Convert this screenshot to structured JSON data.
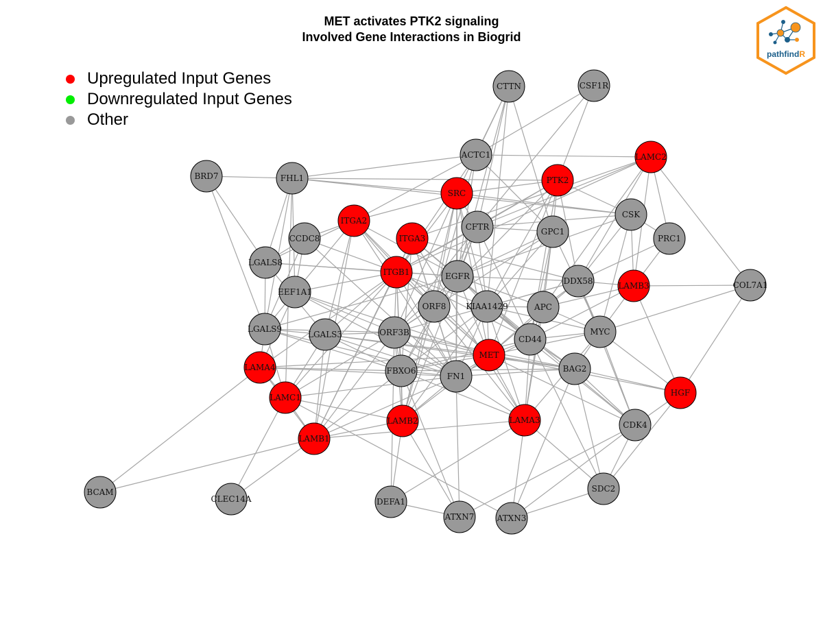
{
  "title": {
    "line1": "MET activates PTK2 signaling",
    "line2": "Involved Gene Interactions in Biogrid"
  },
  "legend": [
    {
      "label": "Upregulated Input Genes",
      "color": "#ff0000"
    },
    {
      "label": "Downregulated Input Genes",
      "color": "#00ee00"
    },
    {
      "label": "Other",
      "color": "#999999"
    }
  ],
  "logo": {
    "text_part1": "pathfind",
    "text_part2": "R",
    "border_color": "#f7941d",
    "text_color": "#1c5f8a"
  },
  "colors": {
    "upregulated": "#ff0000",
    "other": "#999999",
    "edge": "#a6a6a6"
  },
  "nodes": [
    {
      "id": "CTTN",
      "status": "other"
    },
    {
      "id": "CSF1R",
      "status": "other"
    },
    {
      "id": "ACTC1",
      "status": "other"
    },
    {
      "id": "LAMC2",
      "status": "up"
    },
    {
      "id": "BRD7",
      "status": "other"
    },
    {
      "id": "FHL1",
      "status": "other"
    },
    {
      "id": "PTK2",
      "status": "up"
    },
    {
      "id": "SRC",
      "status": "up"
    },
    {
      "id": "CSK",
      "status": "other"
    },
    {
      "id": "ITGA2",
      "status": "up"
    },
    {
      "id": "CFTR",
      "status": "other"
    },
    {
      "id": "GPC1",
      "status": "other"
    },
    {
      "id": "PRC1",
      "status": "other"
    },
    {
      "id": "CCDC8",
      "status": "other"
    },
    {
      "id": "ITGA3",
      "status": "up"
    },
    {
      "id": "LGALS8",
      "status": "other"
    },
    {
      "id": "ITGB1",
      "status": "up"
    },
    {
      "id": "EGFR",
      "status": "other"
    },
    {
      "id": "DDX58",
      "status": "other"
    },
    {
      "id": "LAMB3",
      "status": "up"
    },
    {
      "id": "COL7A1",
      "status": "other"
    },
    {
      "id": "EEF1A1",
      "status": "other"
    },
    {
      "id": "ORF8",
      "status": "other"
    },
    {
      "id": "KIAA1429",
      "status": "other"
    },
    {
      "id": "APC",
      "status": "other"
    },
    {
      "id": "LGALS9",
      "status": "other"
    },
    {
      "id": "LGALS3",
      "status": "other"
    },
    {
      "id": "ORF3B",
      "status": "other"
    },
    {
      "id": "MYC",
      "status": "other"
    },
    {
      "id": "CD44",
      "status": "other"
    },
    {
      "id": "MET",
      "status": "up"
    },
    {
      "id": "LAMA4",
      "status": "up"
    },
    {
      "id": "FBXO6",
      "status": "other"
    },
    {
      "id": "FN1",
      "status": "other"
    },
    {
      "id": "BAG2",
      "status": "other"
    },
    {
      "id": "HGF",
      "status": "up"
    },
    {
      "id": "LAMC1",
      "status": "up"
    },
    {
      "id": "LAMB2",
      "status": "up"
    },
    {
      "id": "LAMA3",
      "status": "up"
    },
    {
      "id": "CDK4",
      "status": "other"
    },
    {
      "id": "LAMB1",
      "status": "up"
    },
    {
      "id": "BCAM",
      "status": "other"
    },
    {
      "id": "CLEC14A",
      "status": "other"
    },
    {
      "id": "DEFA1",
      "status": "other"
    },
    {
      "id": "SDC2",
      "status": "other"
    },
    {
      "id": "ATXN7",
      "status": "other"
    },
    {
      "id": "ATXN3",
      "status": "other"
    }
  ],
  "edges": [
    [
      "CTTN",
      "ACTC1"
    ],
    [
      "CTTN",
      "SRC"
    ],
    [
      "CTTN",
      "CFTR"
    ],
    [
      "CTTN",
      "GPC1"
    ],
    [
      "CTTN",
      "EGFR"
    ],
    [
      "CTTN",
      "KIAA1429"
    ],
    [
      "CSF1R",
      "PTK2"
    ],
    [
      "CSF1R",
      "ACTC1"
    ],
    [
      "CSF1R",
      "CFTR"
    ],
    [
      "ACTC1",
      "LAMC2"
    ],
    [
      "ACTC1",
      "FHL1"
    ],
    [
      "ACTC1",
      "ITGA2"
    ],
    [
      "ACTC1",
      "EGFR"
    ],
    [
      "ACTC1",
      "ORF8"
    ],
    [
      "ACTC1",
      "GPC1"
    ],
    [
      "ACTC1",
      "ITGB1"
    ],
    [
      "LAMC2",
      "ITGA3"
    ],
    [
      "LAMC2",
      "COL7A1"
    ],
    [
      "LAMC2",
      "PRC1"
    ],
    [
      "LAMC2",
      "ITGB1"
    ],
    [
      "LAMC2",
      "APC"
    ],
    [
      "LAMC2",
      "DDX58"
    ],
    [
      "LAMC2",
      "CFTR"
    ],
    [
      "LAMC2",
      "LAMB3"
    ],
    [
      "BRD7",
      "FHL1"
    ],
    [
      "BRD7",
      "LGALS8"
    ],
    [
      "BRD7",
      "LGALS9"
    ],
    [
      "FHL1",
      "SRC"
    ],
    [
      "FHL1",
      "PTK2"
    ],
    [
      "FHL1",
      "LGALS8"
    ],
    [
      "FHL1",
      "LGALS9"
    ],
    [
      "FHL1",
      "CSK"
    ],
    [
      "FHL1",
      "EEF1A1"
    ],
    [
      "FHL1",
      "LAMC1"
    ],
    [
      "PTK2",
      "SRC"
    ],
    [
      "PTK2",
      "CSK"
    ],
    [
      "PTK2",
      "ITGB1"
    ],
    [
      "PTK2",
      "MET"
    ],
    [
      "PTK2",
      "CFTR"
    ],
    [
      "PTK2",
      "GPC1"
    ],
    [
      "PTK2",
      "DDX58"
    ],
    [
      "PTK2",
      "KIAA1429"
    ],
    [
      "PTK2",
      "ORF8"
    ],
    [
      "PTK2",
      "CD44"
    ],
    [
      "SRC",
      "CSK"
    ],
    [
      "SRC",
      "ITGB1"
    ],
    [
      "SRC",
      "EGFR"
    ],
    [
      "SRC",
      "MET"
    ],
    [
      "SRC",
      "ORF3B"
    ],
    [
      "SRC",
      "KIAA1429"
    ],
    [
      "SRC",
      "LAMB2"
    ],
    [
      "SRC",
      "FN1"
    ],
    [
      "SRC",
      "ITGA2"
    ],
    [
      "SRC",
      "CFTR"
    ],
    [
      "SRC",
      "ORF8"
    ],
    [
      "CSK",
      "EGFR"
    ],
    [
      "CSK",
      "CFTR"
    ],
    [
      "CSK",
      "PRC1"
    ],
    [
      "CSK",
      "LAMB3"
    ],
    [
      "CSK",
      "MYC"
    ],
    [
      "CSK",
      "DDX58"
    ],
    [
      "ITGA2",
      "LGALS8"
    ],
    [
      "ITGA2",
      "CCDC8"
    ],
    [
      "ITGA2",
      "ITGB1"
    ],
    [
      "ITGA2",
      "EGFR"
    ],
    [
      "ITGA2",
      "FN1"
    ],
    [
      "ITGA2",
      "LAMB1"
    ],
    [
      "ITGA2",
      "LGALS3"
    ],
    [
      "ITGA2",
      "EEF1A1"
    ],
    [
      "ITGA2",
      "ORF8"
    ],
    [
      "ITGA2",
      "MET"
    ],
    [
      "CFTR",
      "EGFR"
    ],
    [
      "CFTR",
      "ORF3B"
    ],
    [
      "CFTR",
      "KIAA1429"
    ],
    [
      "CFTR",
      "LAMB2"
    ],
    [
      "CFTR",
      "ITGB1"
    ],
    [
      "CFTR",
      "FBXO6"
    ],
    [
      "CFTR",
      "GPC1"
    ],
    [
      "CFTR",
      "CD44"
    ],
    [
      "GPC1",
      "EGFR"
    ],
    [
      "GPC1",
      "APC"
    ],
    [
      "GPC1",
      "CD44"
    ],
    [
      "GPC1",
      "MYC"
    ],
    [
      "GPC1",
      "LAMA3"
    ],
    [
      "GPC1",
      "ORF3B"
    ],
    [
      "GPC1",
      "KIAA1429"
    ],
    [
      "PRC1",
      "LAMB3"
    ],
    [
      "PRC1",
      "DDX58"
    ],
    [
      "CCDC8",
      "LGALS8"
    ],
    [
      "CCDC8",
      "LGALS9"
    ],
    [
      "CCDC8",
      "ITGB1"
    ],
    [
      "CCDC8",
      "FN1"
    ],
    [
      "CCDC8",
      "EEF1A1"
    ],
    [
      "ITGA3",
      "ITGB1"
    ],
    [
      "ITGA3",
      "EGFR"
    ],
    [
      "ITGA3",
      "LAMB1"
    ],
    [
      "ITGA3",
      "FN1"
    ],
    [
      "ITGA3",
      "LAMA3"
    ],
    [
      "ITGA3",
      "ORF8"
    ],
    [
      "ITGA3",
      "CD44"
    ],
    [
      "ITGA3",
      "FBXO6"
    ],
    [
      "ITGA3",
      "DDX58"
    ],
    [
      "LGALS8",
      "ITGB1"
    ],
    [
      "LGALS8",
      "LGALS9"
    ],
    [
      "LGALS8",
      "EGFR"
    ],
    [
      "LGALS8",
      "LGALS3"
    ],
    [
      "ITGB1",
      "EGFR"
    ],
    [
      "ITGB1",
      "ORF8"
    ],
    [
      "ITGB1",
      "FN1"
    ],
    [
      "ITGB1",
      "LAMB2"
    ],
    [
      "ITGB1",
      "MET"
    ],
    [
      "ITGB1",
      "ORF3B"
    ],
    [
      "ITGB1",
      "LAMC1"
    ],
    [
      "ITGB1",
      "LGALS3"
    ],
    [
      "ITGB1",
      "FBXO6"
    ],
    [
      "ITGB1",
      "KIAA1429"
    ],
    [
      "ITGB1",
      "LAMB1"
    ],
    [
      "ITGB1",
      "LAMA4"
    ],
    [
      "ITGB1",
      "CD44"
    ],
    [
      "ITGB1",
      "EEF1A1"
    ],
    [
      "EGFR",
      "KIAA1429"
    ],
    [
      "EGFR",
      "MET"
    ],
    [
      "EGFR",
      "ORF3B"
    ],
    [
      "EGFR",
      "FN1"
    ],
    [
      "EGFR",
      "CD44"
    ],
    [
      "EGFR",
      "APC"
    ],
    [
      "EGFR",
      "DDX58"
    ],
    [
      "EGFR",
      "LGALS9"
    ],
    [
      "EGFR",
      "CDK4"
    ],
    [
      "EGFR",
      "FBXO6"
    ],
    [
      "DDX58",
      "LAMB3"
    ],
    [
      "DDX58",
      "APC"
    ],
    [
      "DDX58",
      "MYC"
    ],
    [
      "DDX58",
      "KIAA1429"
    ],
    [
      "DDX58",
      "CDK4"
    ],
    [
      "DDX58",
      "MET"
    ],
    [
      "DDX58",
      "ORF3B"
    ],
    [
      "LAMB3",
      "COL7A1"
    ],
    [
      "LAMB3",
      "HGF"
    ],
    [
      "LAMB3",
      "MYC"
    ],
    [
      "LAMB3",
      "APC"
    ],
    [
      "LAMB3",
      "CD44"
    ],
    [
      "COL7A1",
      "HGF"
    ],
    [
      "COL7A1",
      "MYC"
    ],
    [
      "EEF1A1",
      "LGALS9"
    ],
    [
      "EEF1A1",
      "FN1"
    ],
    [
      "EEF1A1",
      "ORF3B"
    ],
    [
      "EEF1A1",
      "MET"
    ],
    [
      "EEF1A1",
      "LAMA4"
    ],
    [
      "ORF8",
      "FN1"
    ],
    [
      "ORF8",
      "LAMB2"
    ],
    [
      "ORF8",
      "ORF3B"
    ],
    [
      "ORF8",
      "MET"
    ],
    [
      "ORF8",
      "LAMA3"
    ],
    [
      "KIAA1429",
      "MET"
    ],
    [
      "KIAA1429",
      "CD44"
    ],
    [
      "KIAA1429",
      "APC"
    ],
    [
      "KIAA1429",
      "MYC"
    ],
    [
      "KIAA1429",
      "BAG2"
    ],
    [
      "KIAA1429",
      "FN1"
    ],
    [
      "KIAA1429",
      "FBXO6"
    ],
    [
      "KIAA1429",
      "LAMB2"
    ],
    [
      "KIAA1429",
      "LAMA3"
    ],
    [
      "KIAA1429",
      "CDK4"
    ],
    [
      "APC",
      "MYC"
    ],
    [
      "APC",
      "MET"
    ],
    [
      "APC",
      "CD44"
    ],
    [
      "APC",
      "LAMA3"
    ],
    [
      "LGALS9",
      "LGALS3"
    ],
    [
      "LGALS9",
      "ORF3B"
    ],
    [
      "LGALS9",
      "LAMA4"
    ],
    [
      "LGALS9",
      "LAMC1"
    ],
    [
      "LGALS9",
      "FN1"
    ],
    [
      "LGALS9",
      "FBXO6"
    ],
    [
      "LGALS3",
      "ORF3B"
    ],
    [
      "LGALS3",
      "FN1"
    ],
    [
      "LGALS3",
      "MET"
    ],
    [
      "LGALS3",
      "LAMC1"
    ],
    [
      "LGALS3",
      "FBXO6"
    ],
    [
      "LGALS3",
      "LAMB1"
    ],
    [
      "LGALS3",
      "BAG2"
    ],
    [
      "ORF3B",
      "FN1"
    ],
    [
      "ORF3B",
      "FBXO6"
    ],
    [
      "ORF3B",
      "LAMB2"
    ],
    [
      "ORF3B",
      "MET"
    ],
    [
      "ORF3B",
      "LAMB1"
    ],
    [
      "ORF3B",
      "BAG2"
    ],
    [
      "ORF3B",
      "DEFA1"
    ],
    [
      "ORF3B",
      "LAMC1"
    ],
    [
      "MYC",
      "CD44"
    ],
    [
      "MYC",
      "BAG2"
    ],
    [
      "MYC",
      "HGF"
    ],
    [
      "MYC",
      "CDK4"
    ],
    [
      "MYC",
      "MET"
    ],
    [
      "MYC",
      "LAMA3"
    ],
    [
      "CD44",
      "MET"
    ],
    [
      "CD44",
      "FN1"
    ],
    [
      "CD44",
      "LAMA3"
    ],
    [
      "CD44",
      "BAG2"
    ],
    [
      "CD44",
      "SDC2"
    ],
    [
      "CD44",
      "FBXO6"
    ],
    [
      "MET",
      "FN1"
    ],
    [
      "MET",
      "HGF"
    ],
    [
      "MET",
      "BAG2"
    ],
    [
      "MET",
      "LAMA3"
    ],
    [
      "MET",
      "FBXO6"
    ],
    [
      "MET",
      "LAMB2"
    ],
    [
      "MET",
      "CDK4"
    ],
    [
      "MET",
      "LAMA4"
    ],
    [
      "LAMA4",
      "LAMC1"
    ],
    [
      "LAMA4",
      "LAMB1"
    ],
    [
      "LAMA4",
      "FN1"
    ],
    [
      "LAMA4",
      "BCAM"
    ],
    [
      "LAMA4",
      "FBXO6"
    ],
    [
      "FBXO6",
      "FN1"
    ],
    [
      "FBXO6",
      "LAMB2"
    ],
    [
      "FBXO6",
      "LAMB1"
    ],
    [
      "FBXO6",
      "BAG2"
    ],
    [
      "FBXO6",
      "ATXN7"
    ],
    [
      "FBXO6",
      "LAMA3"
    ],
    [
      "FN1",
      "BAG2"
    ],
    [
      "FN1",
      "LAMA3"
    ],
    [
      "FN1",
      "LAMB1"
    ],
    [
      "FN1",
      "ATXN7"
    ],
    [
      "FN1",
      "LAMC1"
    ],
    [
      "FN1",
      "LAMB2"
    ],
    [
      "BAG2",
      "CDK4"
    ],
    [
      "BAG2",
      "HGF"
    ],
    [
      "BAG2",
      "ATXN3"
    ],
    [
      "BAG2",
      "SDC2"
    ],
    [
      "HGF",
      "CDK4"
    ],
    [
      "HGF",
      "SDC2"
    ],
    [
      "LAMC1",
      "LAMB1"
    ],
    [
      "LAMC1",
      "CLEC14A"
    ],
    [
      "LAMC1",
      "ATXN3"
    ],
    [
      "LAMC1",
      "LAMB2"
    ],
    [
      "LAMB2",
      "DEFA1"
    ],
    [
      "LAMB2",
      "ATXN7"
    ],
    [
      "LAMB2",
      "LAMB1"
    ],
    [
      "LAMA3",
      "DEFA1"
    ],
    [
      "LAMA3",
      "ATXN3"
    ],
    [
      "LAMA3",
      "SDC2"
    ],
    [
      "LAMA3",
      "LAMB1"
    ],
    [
      "CDK4",
      "SDC2"
    ],
    [
      "CDK4",
      "ATXN3"
    ],
    [
      "CDK4",
      "ATXN7"
    ],
    [
      "LAMB1",
      "BCAM"
    ],
    [
      "LAMB1",
      "CLEC14A"
    ],
    [
      "DEFA1",
      "ATXN7"
    ],
    [
      "SDC2",
      "ATXN3"
    ]
  ]
}
